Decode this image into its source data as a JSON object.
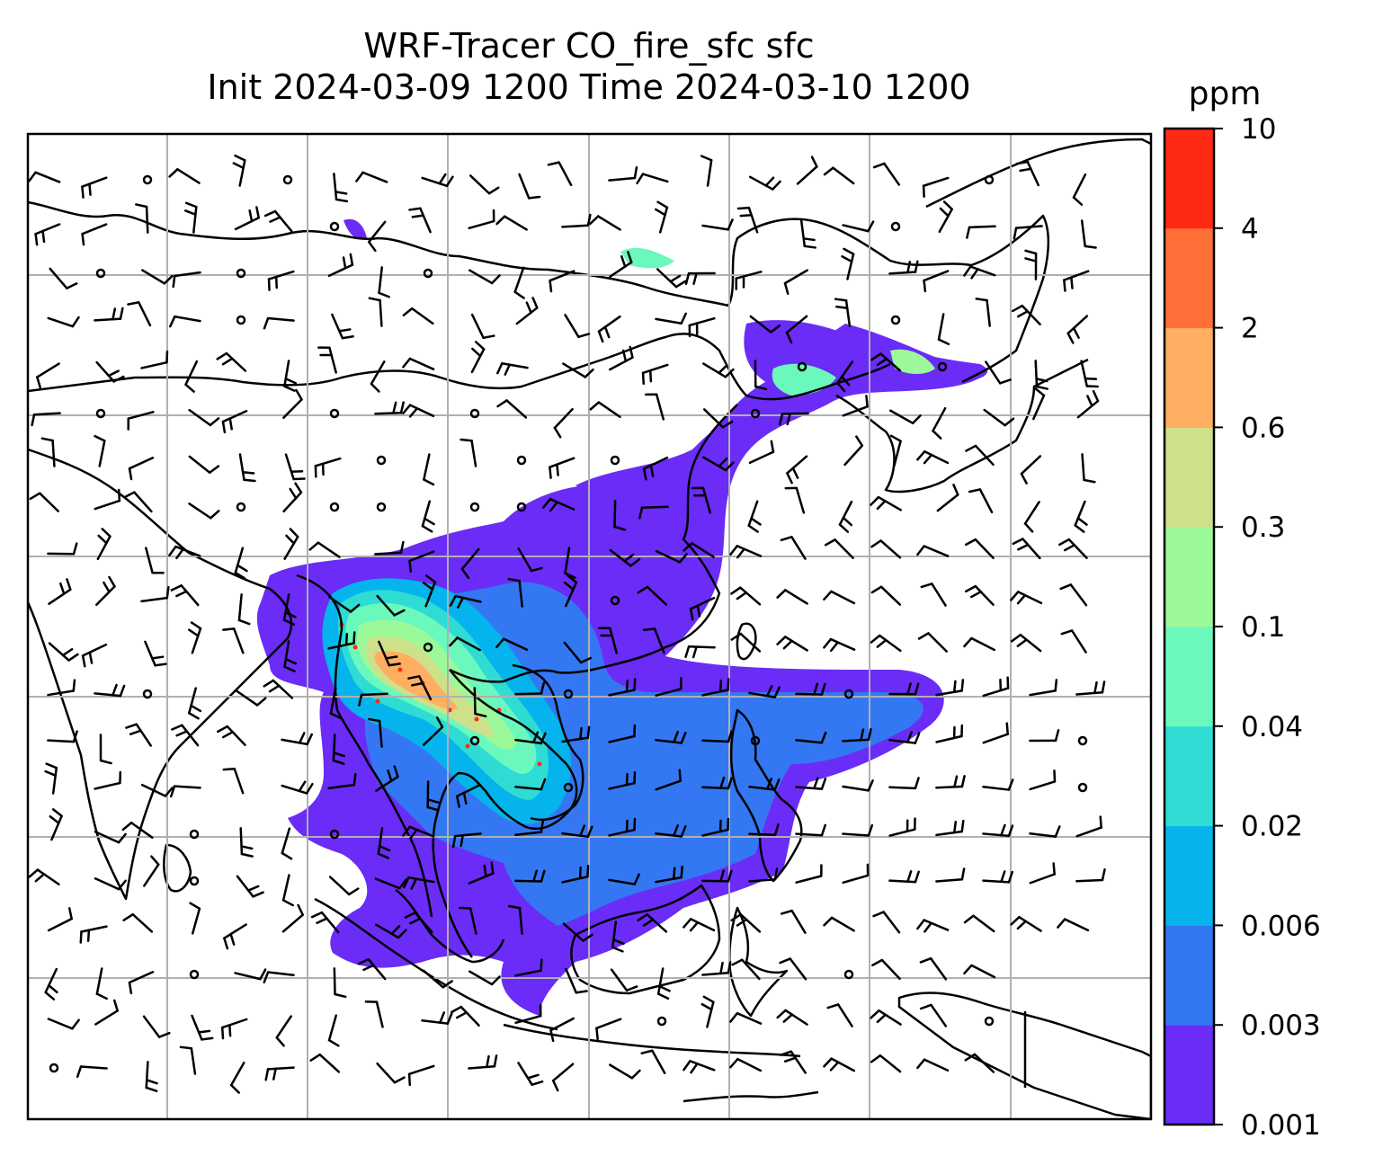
{
  "title": {
    "line1": "WRF-Tracer CO_fire_sfc sfc",
    "line2": "Init 2024-03-09 1200 Time 2024-03-10 1200"
  },
  "colorbar": {
    "unit": "ppm",
    "levels": [
      "0.001",
      "0.003",
      "0.006",
      "0.02",
      "0.04",
      "0.1",
      "0.3",
      "0.6",
      "2",
      "4",
      "10"
    ],
    "colors": [
      "#6a2cf6",
      "#3477f2",
      "#05b4ec",
      "#2fdcd4",
      "#6bf8bd",
      "#9cf99a",
      "#cfe08a",
      "#ffae62",
      "#ff7039",
      "#ff2a13"
    ]
  },
  "map": {
    "variable": "CO_fire_sfc",
    "level": "sfc",
    "gridlines": true,
    "wind_barbs": true,
    "coastlines": true
  }
}
